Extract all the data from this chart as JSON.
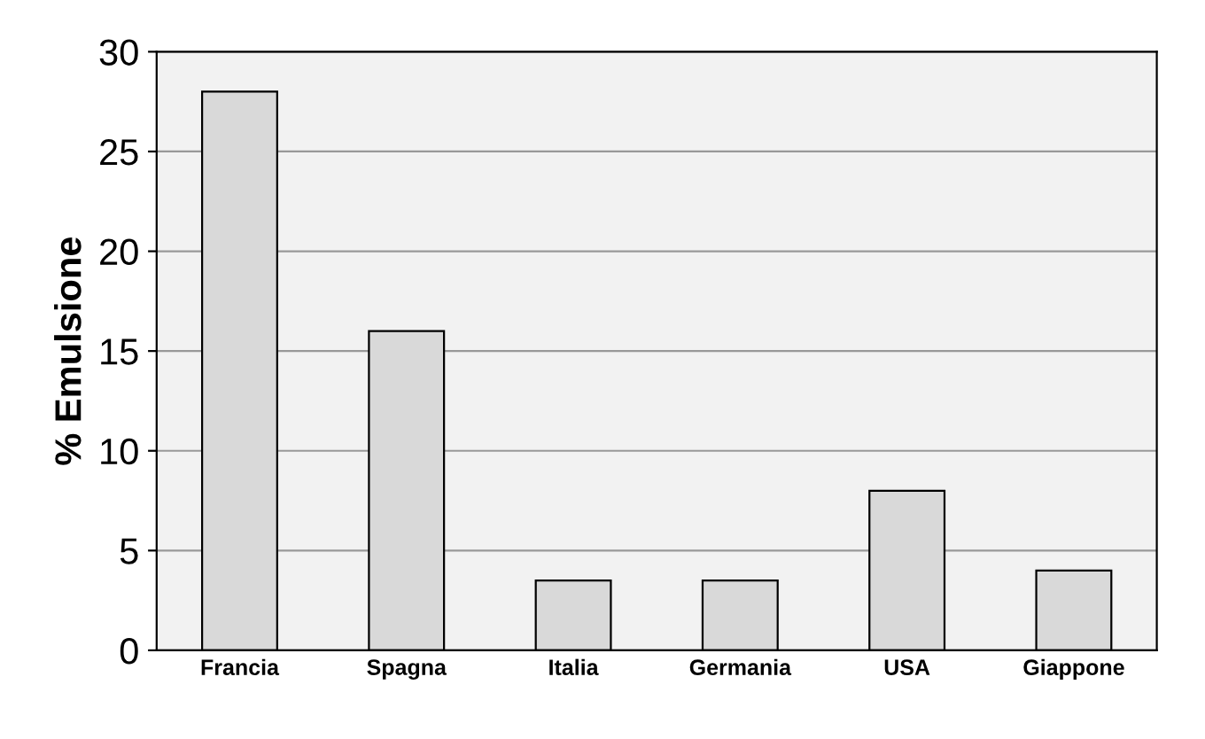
{
  "chart_data": {
    "type": "bar",
    "ylabel": "% Emulsione",
    "categories": [
      "Francia",
      "Spagna",
      "Italia",
      "Germania",
      "USA",
      "Giappone"
    ],
    "values": [
      28,
      16,
      3.5,
      3.5,
      8,
      4
    ],
    "color": "#d9d9d9",
    "ylim": [
      0,
      30
    ],
    "yticks": [
      0,
      5,
      10,
      15,
      20,
      25,
      30
    ],
    "grid": "y"
  }
}
